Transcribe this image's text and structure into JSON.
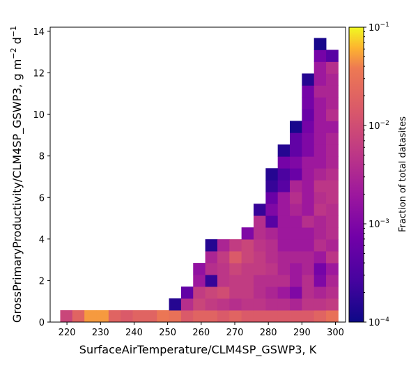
{
  "chart_data": {
    "type": "heatmap",
    "xlabel_html": "SurfaceAirTemperature/CLM4SP_GSWP3,  K",
    "ylabel_parts": [
      "GrossPrimaryProductivity/CLM4SP_GSWP3,  g m",
      "−2",
      " d",
      "−1"
    ],
    "colorbar": {
      "label": "Fraction of total datasites",
      "scale": "log",
      "range": [
        0.0001,
        0.1
      ],
      "colormap": "plasma",
      "tick_exponents": [
        "−4",
        "−3",
        "−2",
        "−1"
      ]
    },
    "xlim": [
      215,
      303
    ],
    "ylim": [
      0,
      14.2
    ],
    "x_ticks": [
      220,
      230,
      240,
      250,
      260,
      270,
      280,
      290,
      300
    ],
    "y_ticks": [
      0,
      2,
      4,
      6,
      8,
      10,
      12,
      14
    ],
    "x_edges": [
      218.0,
      221.6,
      225.2,
      228.8,
      232.4,
      236.0,
      239.6,
      243.2,
      246.8,
      250.4,
      254.0,
      257.6,
      261.2,
      264.8,
      268.4,
      272.0,
      275.6,
      279.2,
      282.8,
      286.4,
      290.0,
      293.6,
      297.2,
      300.8
    ],
    "y_edges": [
      0,
      0.57,
      1.14,
      1.71,
      2.28,
      2.85,
      3.42,
      3.99,
      4.56,
      5.13,
      5.7,
      6.27,
      6.84,
      7.41,
      7.98,
      8.55,
      9.12,
      9.69,
      10.26,
      10.83,
      11.4,
      11.97,
      12.54,
      13.11,
      13.68,
      14.25
    ],
    "cells": [
      {
        "c": 0,
        "r": 0,
        "v": 0.008
      },
      {
        "c": 1,
        "r": 0,
        "v": 0.02
      },
      {
        "c": 2,
        "r": 0,
        "v": 0.05
      },
      {
        "c": 3,
        "r": 0,
        "v": 0.05
      },
      {
        "c": 4,
        "r": 0,
        "v": 0.02
      },
      {
        "c": 5,
        "r": 0,
        "v": 0.015
      },
      {
        "c": 6,
        "r": 0,
        "v": 0.02
      },
      {
        "c": 7,
        "r": 0,
        "v": 0.02
      },
      {
        "c": 8,
        "r": 0,
        "v": 0.035
      },
      {
        "c": 9,
        "r": 0,
        "v": 0.03
      },
      {
        "c": 10,
        "r": 0,
        "v": 0.015
      },
      {
        "c": 11,
        "r": 0,
        "v": 0.02
      },
      {
        "c": 12,
        "r": 0,
        "v": 0.02
      },
      {
        "c": 13,
        "r": 0,
        "v": 0.015
      },
      {
        "c": 14,
        "r": 0,
        "v": 0.02
      },
      {
        "c": 15,
        "r": 0,
        "v": 0.015
      },
      {
        "c": 16,
        "r": 0,
        "v": 0.015
      },
      {
        "c": 17,
        "r": 0,
        "v": 0.015
      },
      {
        "c": 18,
        "r": 0,
        "v": 0.015
      },
      {
        "c": 19,
        "r": 0,
        "v": 0.015
      },
      {
        "c": 20,
        "r": 0,
        "v": 0.015
      },
      {
        "c": 21,
        "r": 0,
        "v": 0.02
      },
      {
        "c": 22,
        "r": 0,
        "v": 0.03
      },
      {
        "c": 9,
        "r": 1,
        "v": 0.00015
      },
      {
        "c": 10,
        "r": 1,
        "v": 0.004
      },
      {
        "c": 11,
        "r": 1,
        "v": 0.008
      },
      {
        "c": 12,
        "r": 1,
        "v": 0.006
      },
      {
        "c": 13,
        "r": 1,
        "v": 0.005
      },
      {
        "c": 14,
        "r": 1,
        "v": 0.004
      },
      {
        "c": 15,
        "r": 1,
        "v": 0.005
      },
      {
        "c": 16,
        "r": 1,
        "v": 0.005
      },
      {
        "c": 17,
        "r": 1,
        "v": 0.004
      },
      {
        "c": 18,
        "r": 1,
        "v": 0.004
      },
      {
        "c": 19,
        "r": 1,
        "v": 0.003
      },
      {
        "c": 20,
        "r": 1,
        "v": 0.005
      },
      {
        "c": 21,
        "r": 1,
        "v": 0.005
      },
      {
        "c": 22,
        "r": 1,
        "v": 0.006
      },
      {
        "c": 10,
        "r": 2,
        "v": 0.0005
      },
      {
        "c": 11,
        "r": 2,
        "v": 0.006
      },
      {
        "c": 12,
        "r": 2,
        "v": 0.008
      },
      {
        "c": 13,
        "r": 2,
        "v": 0.01
      },
      {
        "c": 14,
        "r": 2,
        "v": 0.006
      },
      {
        "c": 15,
        "r": 2,
        "v": 0.006
      },
      {
        "c": 16,
        "r": 2,
        "v": 0.004
      },
      {
        "c": 17,
        "r": 2,
        "v": 0.003
      },
      {
        "c": 18,
        "r": 2,
        "v": 0.002
      },
      {
        "c": 19,
        "r": 2,
        "v": 0.001
      },
      {
        "c": 20,
        "r": 2,
        "v": 0.004
      },
      {
        "c": 21,
        "r": 2,
        "v": 0.003
      },
      {
        "c": 22,
        "r": 2,
        "v": 0.004
      },
      {
        "c": 11,
        "r": 3,
        "v": 0.002
      },
      {
        "c": 12,
        "r": 3,
        "v": 0.0002
      },
      {
        "c": 13,
        "r": 3,
        "v": 0.005
      },
      {
        "c": 14,
        "r": 3,
        "v": 0.006
      },
      {
        "c": 15,
        "r": 3,
        "v": 0.006
      },
      {
        "c": 16,
        "r": 3,
        "v": 0.004
      },
      {
        "c": 17,
        "r": 3,
        "v": 0.004
      },
      {
        "c": 18,
        "r": 3,
        "v": 0.004
      },
      {
        "c": 19,
        "r": 3,
        "v": 0.002
      },
      {
        "c": 20,
        "r": 3,
        "v": 0.004
      },
      {
        "c": 21,
        "r": 3,
        "v": 0.001
      },
      {
        "c": 22,
        "r": 3,
        "v": 0.003
      },
      {
        "c": 11,
        "r": 4,
        "v": 0.0015
      },
      {
        "c": 12,
        "r": 4,
        "v": 0.004
      },
      {
        "c": 13,
        "r": 4,
        "v": 0.005
      },
      {
        "c": 14,
        "r": 4,
        "v": 0.008
      },
      {
        "c": 15,
        "r": 4,
        "v": 0.006
      },
      {
        "c": 16,
        "r": 4,
        "v": 0.006
      },
      {
        "c": 17,
        "r": 4,
        "v": 0.005
      },
      {
        "c": 18,
        "r": 4,
        "v": 0.003
      },
      {
        "c": 19,
        "r": 4,
        "v": 0.002
      },
      {
        "c": 20,
        "r": 4,
        "v": 0.003
      },
      {
        "c": 21,
        "r": 4,
        "v": 0.0008
      },
      {
        "c": 22,
        "r": 4,
        "v": 0.002
      },
      {
        "c": 12,
        "r": 5,
        "v": 0.003
      },
      {
        "c": 13,
        "r": 5,
        "v": 0.006
      },
      {
        "c": 14,
        "r": 5,
        "v": 0.015
      },
      {
        "c": 15,
        "r": 5,
        "v": 0.008
      },
      {
        "c": 16,
        "r": 5,
        "v": 0.006
      },
      {
        "c": 17,
        "r": 5,
        "v": 0.004
      },
      {
        "c": 18,
        "r": 5,
        "v": 0.003
      },
      {
        "c": 19,
        "r": 5,
        "v": 0.003
      },
      {
        "c": 20,
        "r": 5,
        "v": 0.003
      },
      {
        "c": 21,
        "r": 5,
        "v": 0.002
      },
      {
        "c": 22,
        "r": 5,
        "v": 0.005
      },
      {
        "c": 12,
        "r": 6,
        "v": 0.00015
      },
      {
        "c": 13,
        "r": 6,
        "v": 0.003
      },
      {
        "c": 14,
        "r": 6,
        "v": 0.006
      },
      {
        "c": 15,
        "r": 6,
        "v": 0.008
      },
      {
        "c": 16,
        "r": 6,
        "v": 0.005
      },
      {
        "c": 17,
        "r": 6,
        "v": 0.004
      },
      {
        "c": 18,
        "r": 6,
        "v": 0.002
      },
      {
        "c": 19,
        "r": 6,
        "v": 0.002
      },
      {
        "c": 20,
        "r": 6,
        "v": 0.002
      },
      {
        "c": 21,
        "r": 6,
        "v": 0.004
      },
      {
        "c": 22,
        "r": 6,
        "v": 0.003
      },
      {
        "c": 15,
        "r": 7,
        "v": 0.001
      },
      {
        "c": 16,
        "r": 7,
        "v": 0.004
      },
      {
        "c": 17,
        "r": 7,
        "v": 0.003
      },
      {
        "c": 18,
        "r": 7,
        "v": 0.002
      },
      {
        "c": 19,
        "r": 7,
        "v": 0.002
      },
      {
        "c": 20,
        "r": 7,
        "v": 0.002
      },
      {
        "c": 21,
        "r": 7,
        "v": 0.003
      },
      {
        "c": 22,
        "r": 7,
        "v": 0.004
      },
      {
        "c": 16,
        "r": 8,
        "v": 0.004
      },
      {
        "c": 17,
        "r": 8,
        "v": 0.0004
      },
      {
        "c": 18,
        "r": 8,
        "v": 0.002
      },
      {
        "c": 19,
        "r": 8,
        "v": 0.002
      },
      {
        "c": 20,
        "r": 8,
        "v": 0.004
      },
      {
        "c": 21,
        "r": 8,
        "v": 0.003
      },
      {
        "c": 22,
        "r": 8,
        "v": 0.004
      },
      {
        "c": 16,
        "r": 9,
        "v": 0.0002
      },
      {
        "c": 17,
        "r": 9,
        "v": 0.001
      },
      {
        "c": 18,
        "r": 9,
        "v": 0.002
      },
      {
        "c": 19,
        "r": 9,
        "v": 0.003
      },
      {
        "c": 20,
        "r": 9,
        "v": 0.002
      },
      {
        "c": 21,
        "r": 9,
        "v": 0.005
      },
      {
        "c": 22,
        "r": 9,
        "v": 0.004
      },
      {
        "c": 17,
        "r": 10,
        "v": 0.0006
      },
      {
        "c": 18,
        "r": 10,
        "v": 0.002
      },
      {
        "c": 19,
        "r": 10,
        "v": 0.004
      },
      {
        "c": 20,
        "r": 10,
        "v": 0.002
      },
      {
        "c": 21,
        "r": 10,
        "v": 0.004
      },
      {
        "c": 22,
        "r": 10,
        "v": 0.005
      },
      {
        "c": 17,
        "r": 11,
        "v": 0.0002
      },
      {
        "c": 18,
        "r": 11,
        "v": 0.0004
      },
      {
        "c": 19,
        "r": 11,
        "v": 0.003
      },
      {
        "c": 20,
        "r": 11,
        "v": 0.002
      },
      {
        "c": 21,
        "r": 11,
        "v": 0.005
      },
      {
        "c": 22,
        "r": 11,
        "v": 0.005
      },
      {
        "c": 17,
        "r": 12,
        "v": 0.00015
      },
      {
        "c": 18,
        "r": 12,
        "v": 0.0003
      },
      {
        "c": 19,
        "r": 12,
        "v": 0.0006
      },
      {
        "c": 20,
        "r": 12,
        "v": 0.002
      },
      {
        "c": 21,
        "r": 12,
        "v": 0.003
      },
      {
        "c": 22,
        "r": 12,
        "v": 0.004
      },
      {
        "c": 18,
        "r": 13,
        "v": 0.0008
      },
      {
        "c": 19,
        "r": 13,
        "v": 0.001
      },
      {
        "c": 20,
        "r": 13,
        "v": 0.002
      },
      {
        "c": 21,
        "r": 13,
        "v": 0.002
      },
      {
        "c": 22,
        "r": 13,
        "v": 0.003
      },
      {
        "c": 18,
        "r": 14,
        "v": 0.00015
      },
      {
        "c": 19,
        "r": 14,
        "v": 0.0005
      },
      {
        "c": 20,
        "r": 14,
        "v": 0.001
      },
      {
        "c": 21,
        "r": 14,
        "v": 0.002
      },
      {
        "c": 22,
        "r": 14,
        "v": 0.003
      },
      {
        "c": 19,
        "r": 15,
        "v": 0.0005
      },
      {
        "c": 20,
        "r": 15,
        "v": 0.001
      },
      {
        "c": 21,
        "r": 15,
        "v": 0.002
      },
      {
        "c": 22,
        "r": 15,
        "v": 0.003
      },
      {
        "c": 19,
        "r": 16,
        "v": 0.00012
      },
      {
        "c": 20,
        "r": 16,
        "v": 0.0008
      },
      {
        "c": 21,
        "r": 16,
        "v": 0.002
      },
      {
        "c": 22,
        "r": 16,
        "v": 0.002
      },
      {
        "c": 20,
        "r": 17,
        "v": 0.0006
      },
      {
        "c": 21,
        "r": 17,
        "v": 0.002
      },
      {
        "c": 22,
        "r": 17,
        "v": 0.004
      },
      {
        "c": 20,
        "r": 18,
        "v": 0.0008
      },
      {
        "c": 21,
        "r": 18,
        "v": 0.002
      },
      {
        "c": 22,
        "r": 18,
        "v": 0.003
      },
      {
        "c": 20,
        "r": 19,
        "v": 0.0008
      },
      {
        "c": 21,
        "r": 19,
        "v": 0.003
      },
      {
        "c": 22,
        "r": 19,
        "v": 0.003
      },
      {
        "c": 20,
        "r": 20,
        "v": 0.00015
      },
      {
        "c": 21,
        "r": 20,
        "v": 0.002
      },
      {
        "c": 22,
        "r": 20,
        "v": 0.003
      },
      {
        "c": 21,
        "r": 21,
        "v": 0.002
      },
      {
        "c": 22,
        "r": 21,
        "v": 0.004
      },
      {
        "c": 21,
        "r": 22,
        "v": 0.0008
      },
      {
        "c": 22,
        "r": 22,
        "v": 0.0004
      },
      {
        "c": 21,
        "r": 23,
        "v": 0.00012
      }
    ]
  }
}
